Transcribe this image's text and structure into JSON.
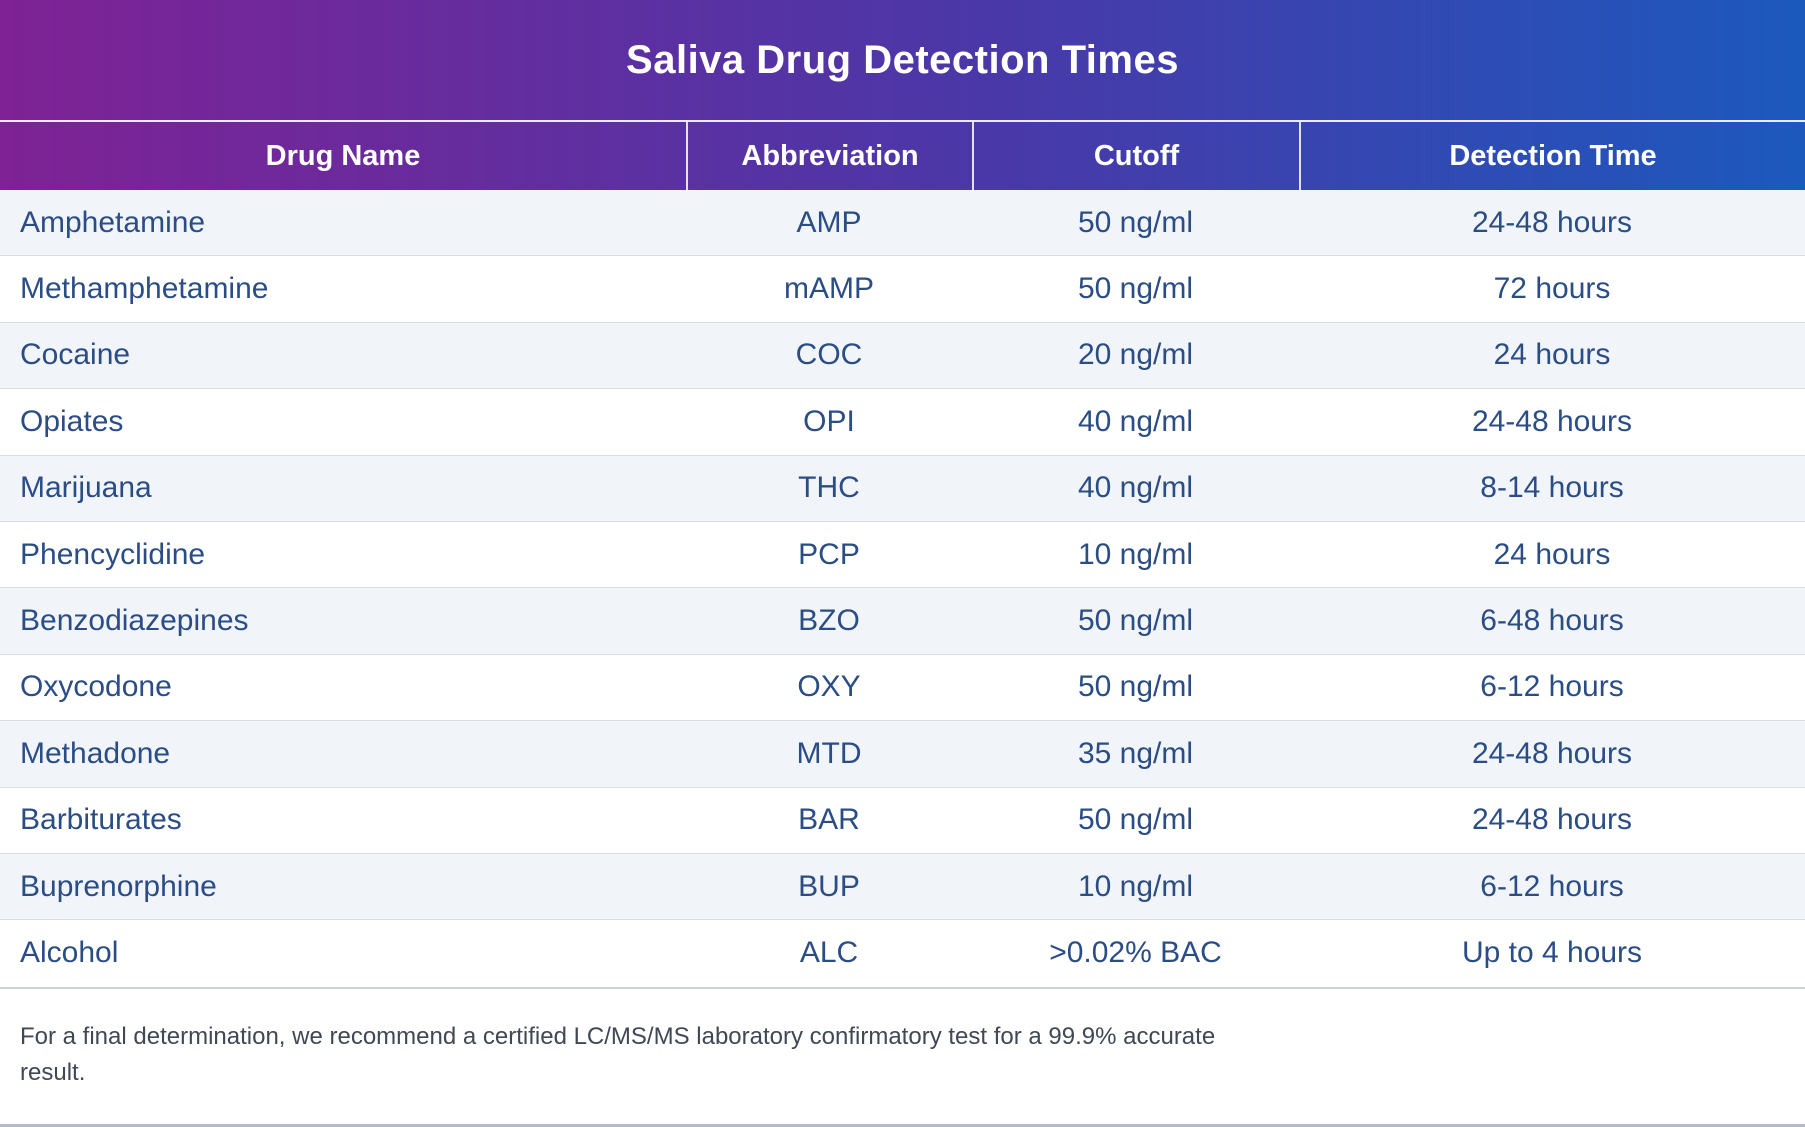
{
  "chart_data": {
    "type": "table",
    "title": "Saliva Drug Detection Times",
    "columns": [
      "Drug Name",
      "Abbreviation",
      "Cutoff",
      "Detection Time"
    ],
    "rows": [
      {
        "name": "Amphetamine",
        "abbr": "AMP",
        "cutoff": "50 ng/ml",
        "time": "24-48 hours"
      },
      {
        "name": "Methamphetamine",
        "abbr": "mAMP",
        "cutoff": "50 ng/ml",
        "time": "72 hours"
      },
      {
        "name": "Cocaine",
        "abbr": "COC",
        "cutoff": "20 ng/ml",
        "time": "24 hours"
      },
      {
        "name": "Opiates",
        "abbr": "OPI",
        "cutoff": "40 ng/ml",
        "time": "24-48 hours"
      },
      {
        "name": "Marijuana",
        "abbr": "THC",
        "cutoff": "40 ng/ml",
        "time": "8-14 hours"
      },
      {
        "name": "Phencyclidine",
        "abbr": "PCP",
        "cutoff": "10 ng/ml",
        "time": "24 hours"
      },
      {
        "name": "Benzodiazepines",
        "abbr": "BZO",
        "cutoff": "50 ng/ml",
        "time": "6-48 hours"
      },
      {
        "name": "Oxycodone",
        "abbr": "OXY",
        "cutoff": "50 ng/ml",
        "time": "6-12 hours"
      },
      {
        "name": "Methadone",
        "abbr": "MTD",
        "cutoff": "35 ng/ml",
        "time": "24-48 hours"
      },
      {
        "name": "Barbiturates",
        "abbr": "BAR",
        "cutoff": "50 ng/ml",
        "time": "24-48 hours"
      },
      {
        "name": "Buprenorphine",
        "abbr": "BUP",
        "cutoff": "10 ng/ml",
        "time": "6-12 hours"
      },
      {
        "name": "Alcohol",
        "abbr": "ALC",
        "cutoff": ">0.02% BAC",
        "time": "Up to 4 hours"
      }
    ],
    "layout": {
      "striped": true,
      "stripe_color": "#f1f4f9",
      "header_gradient": [
        "#7e2295",
        "#1c59bd"
      ],
      "text_color": "#2b4d86"
    }
  },
  "footer": {
    "note_line1": "For a final determination, we recommend a certified LC/MS/MS laboratory confirmatory test for a 99.9% accurate",
    "note_line2": "result."
  }
}
